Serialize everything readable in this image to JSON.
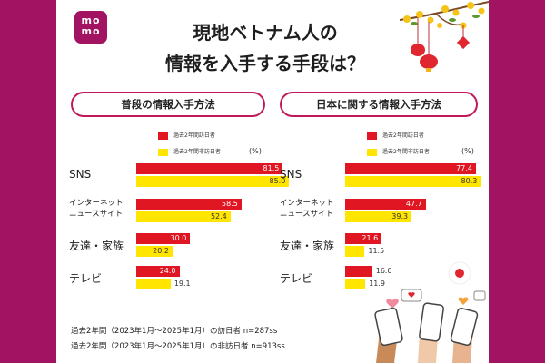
{
  "logo": {
    "line1": "mo",
    "line2": "mo"
  },
  "title": {
    "line1": "現地ベトナム人の",
    "line2": "情報を入手する手段は？"
  },
  "colors": {
    "brand": "#a21461",
    "visited": "#e01622",
    "not_visited": "#ffe500"
  },
  "chart_data": [
    {
      "type": "bar",
      "title": "普段の情報入手方法",
      "unit": "(%)",
      "categories": [
        "SNS",
        "インターネット\nニュースサイト",
        "友達・家族",
        "テレビ"
      ],
      "series": [
        {
          "name": "過去2年間訪日者",
          "values": [
            81.5,
            58.5,
            30.0,
            24.0
          ]
        },
        {
          "name": "過去2年間非訪日者",
          "values": [
            85.0,
            52.4,
            20.2,
            19.1
          ]
        }
      ],
      "xlim": [
        0,
        100
      ]
    },
    {
      "type": "bar",
      "title": "日本に関する情報入手方法",
      "unit": "(%)",
      "categories": [
        "SNS",
        "インターネット\nニュースサイト",
        "友達・家族",
        "テレビ"
      ],
      "series": [
        {
          "name": "過去2年間訪日者",
          "values": [
            77.4,
            47.7,
            21.6,
            16.0
          ]
        },
        {
          "name": "過去2年間非訪日者",
          "values": [
            80.3,
            39.3,
            11.5,
            11.9
          ]
        }
      ],
      "xlim": [
        0,
        100
      ]
    }
  ],
  "footnotes": [
    "過去2年間（2023年1月～2025年1月）の訪日者 n=287ss",
    "過去2年間（2023年1月～2025年1月）の非訪日者 n=913ss"
  ]
}
